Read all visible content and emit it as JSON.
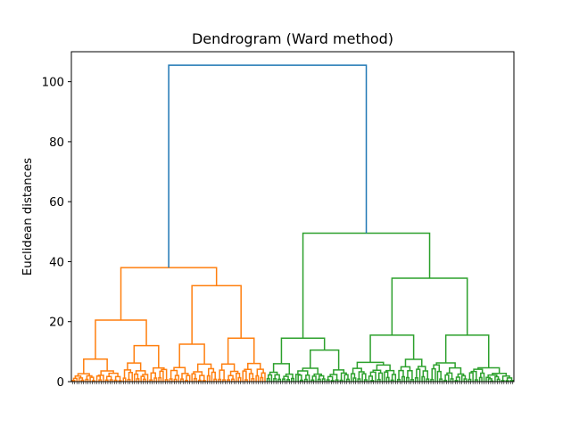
{
  "chart_data": {
    "type": "dendrogram",
    "title": "Dendrogram (Ward method)",
    "xlabel": "",
    "ylabel": "Euclidean distances",
    "ylim": [
      0,
      110
    ],
    "yticks": [
      0,
      20,
      40,
      60,
      80,
      100
    ],
    "leaf_count": 200,
    "leaf_label_text": "",
    "clusters": [
      {
        "color": "#ff7f0e",
        "leaves": 88,
        "merge_height": 38,
        "children": [
          {
            "leaves": 44,
            "merge_height": 20.5,
            "children": [
              {
                "leaves": 23,
                "merge_height": 7.5
              },
              {
                "leaves": 21,
                "merge_height": 12
              }
            ]
          },
          {
            "leaves": 44,
            "merge_height": 32,
            "children": [
              {
                "leaves": 22,
                "merge_height": 12.5
              },
              {
                "leaves": 22,
                "merge_height": 14.5
              }
            ]
          }
        ]
      },
      {
        "color": "#2ca02c",
        "leaves": 112,
        "merge_height": 49.5,
        "children": [
          {
            "leaves": 38,
            "merge_height": 14.5,
            "children": [
              {
                "leaves": 13,
                "merge_height": 6
              },
              {
                "leaves": 25,
                "merge_height": 10.5
              }
            ]
          },
          {
            "leaves": 74,
            "merge_height": 34.5,
            "children": [
              {
                "leaves": 36,
                "merge_height": 15.5
              },
              {
                "leaves": 38,
                "merge_height": 15.5
              }
            ]
          }
        ]
      }
    ],
    "root": {
      "color": "#1f77b4",
      "merge_height": 105.5
    }
  }
}
